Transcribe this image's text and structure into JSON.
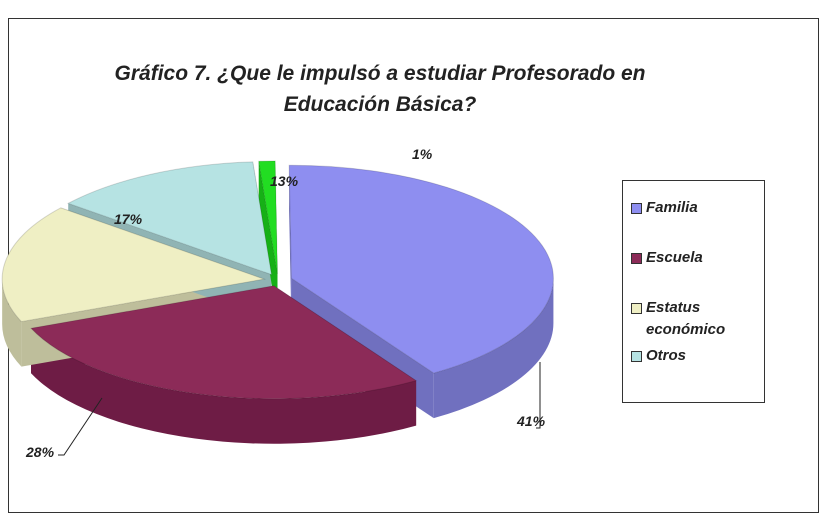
{
  "chart_data": {
    "type": "pie3d",
    "title": "Gráfico 7. ¿Que le impulsó a estudiar Profesorado en Educación Básica?",
    "categories": [
      "Familia",
      "Escuela",
      "Estatus económico",
      "Otros",
      null
    ],
    "values": [
      41,
      28,
      17,
      13,
      1
    ],
    "value_labels": [
      "41%",
      "28%",
      "17%",
      "13%",
      "1%"
    ],
    "colors": [
      "#8e8ef0",
      "#8c2b58",
      "#efefc4",
      "#b6e3e3",
      "#22dd22"
    ],
    "legend": "right"
  }
}
